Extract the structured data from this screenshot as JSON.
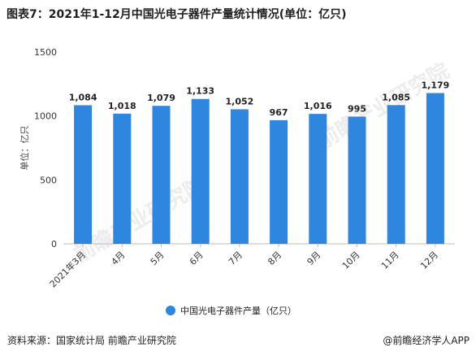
{
  "title": "图表7：2021年1-12月中国光电子器件产量统计情况(单位：亿只)",
  "source": "资料来源：国家统计局 前瞻产业研究院",
  "brand": "@前瞻经济学人APP",
  "watermark": "前瞻产业研究院",
  "chart_data": {
    "type": "bar",
    "categories": [
      "2021年3月",
      "4月",
      "5月",
      "6月",
      "7月",
      "8月",
      "9月",
      "10月",
      "11月",
      "12月"
    ],
    "series": [
      {
        "name": "中国光电子器件产量（亿只）",
        "values": [
          1084,
          1018,
          1079,
          1133,
          1052,
          967,
          1016,
          995,
          1085,
          1179
        ],
        "labels": [
          "1,084",
          "1,018",
          "1,079",
          "1,133",
          "1,052",
          "967",
          "1,016",
          "995",
          "1,085",
          "1,179"
        ],
        "color": "#2e86de"
      }
    ],
    "ylabel": "单位：亿只",
    "ylim": [
      0,
      1500
    ],
    "yticks": [
      "0",
      "500",
      "1000",
      "1500"
    ],
    "grid": false,
    "legend": "bottom"
  }
}
